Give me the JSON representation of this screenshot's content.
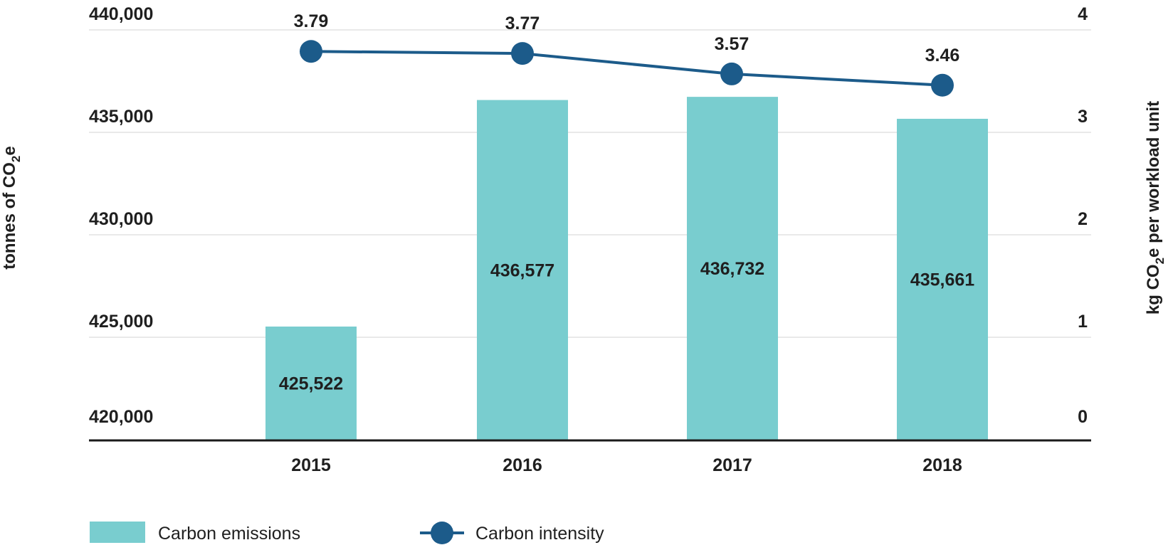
{
  "chart_data": {
    "type": "bar",
    "categories": [
      "2015",
      "2016",
      "2017",
      "2018"
    ],
    "series": [
      {
        "name": "Carbon emissions",
        "type": "bar",
        "axis": "left",
        "values": [
          425522,
          436577,
          436732,
          435661
        ],
        "labels": [
          "425,522",
          "436,577",
          "436,732",
          "435,661"
        ],
        "color": "#79cdcf"
      },
      {
        "name": "Carbon intensity",
        "type": "line",
        "axis": "right",
        "values": [
          3.79,
          3.77,
          3.57,
          3.46
        ],
        "labels": [
          "3.79",
          "3.77",
          "3.57",
          "3.46"
        ],
        "color": "#1c5b8a"
      }
    ],
    "y_left": {
      "label_main": "tonnes of CO",
      "label_sub": "2",
      "label_tail": "e",
      "ylim": [
        420000,
        440000
      ],
      "ticks": [
        420000,
        425000,
        430000,
        435000,
        440000
      ],
      "tick_labels": [
        "420,000",
        "425,000",
        "430,000",
        "435,000",
        "440,000"
      ]
    },
    "y_right": {
      "label_main": "kg CO",
      "label_sub": "2",
      "label_tail": "e per workload unit",
      "ylim": [
        0,
        4
      ],
      "ticks": [
        0,
        1,
        2,
        3,
        4
      ],
      "tick_labels": [
        "0",
        "1",
        "2",
        "3",
        "4"
      ]
    },
    "grid": true,
    "legend_position": "bottom-left"
  }
}
